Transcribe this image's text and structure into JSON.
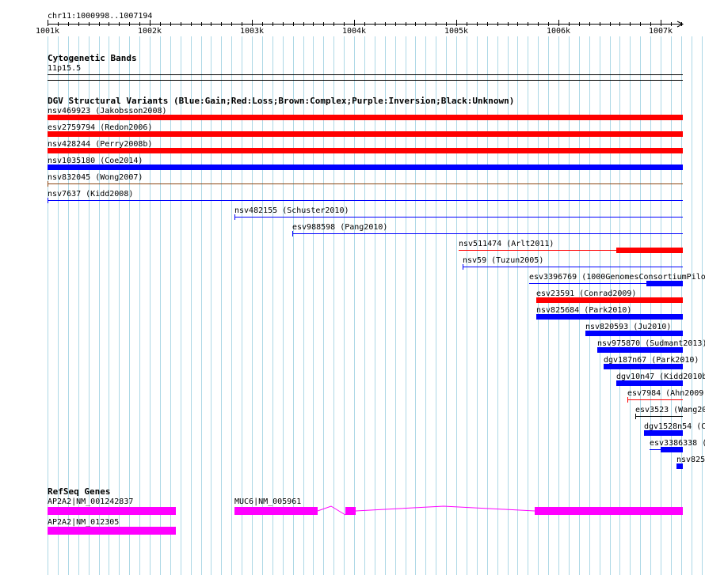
{
  "colors": {
    "gain": "#0000ff",
    "loss": "#ff0000",
    "refseq": "#ff00ff",
    "grid": "#add8e6"
  },
  "ruler": {
    "position": "chr11:1000998..1007194",
    "ticks": [
      "1001k",
      "1002k",
      "1003k",
      "1004k",
      "1005k",
      "1006k",
      "1007k"
    ]
  },
  "cytoband": {
    "title": "Cytogenetic Bands",
    "band": "11p15.5"
  },
  "dgv": {
    "title": "DGV Structural Variants (Blue:Gain;Red:Loss;Brown:Complex;Purple:Inversion;Black:Unknown)",
    "variants": [
      {
        "label": "nsv469923 (Jakobsson2008)",
        "type": "loss"
      },
      {
        "label": "esv2759794 (Redon2006)",
        "type": "loss"
      },
      {
        "label": "nsv428244 (Perry2008b)",
        "type": "loss"
      },
      {
        "label": "nsv1035180 (Coe2014)",
        "type": "gain"
      },
      {
        "label": "nsv832045 (Wong2007)",
        "type": "complex"
      },
      {
        "label": "nsv7637 (Kidd2008)",
        "type": "gain"
      },
      {
        "label": "nsv482155 (Schuster2010)",
        "type": "gain"
      },
      {
        "label": "esv988598 (Pang2010)",
        "type": "gain"
      },
      {
        "label": "nsv511474 (Arlt2011)",
        "type": "loss"
      },
      {
        "label": "nsv59 (Tuzun2005)",
        "type": "gain"
      },
      {
        "label": "esv3396769 (1000GenomesConsortiumPilo",
        "type": "gain"
      },
      {
        "label": "esv23591 (Conrad2009)",
        "type": "loss"
      },
      {
        "label": "nsv825684 (Park2010)",
        "type": "gain"
      },
      {
        "label": "nsv820593 (Ju2010)",
        "type": "gain"
      },
      {
        "label": "nsv975870 (Sudmant2013)",
        "type": "gain"
      },
      {
        "label": "dgv187n67 (Park2010)",
        "type": "gain"
      },
      {
        "label": "dgv10n47 (Kidd2010b",
        "type": "gain"
      },
      {
        "label": "esv7984 (Ahn2009)",
        "type": "loss"
      },
      {
        "label": "esv3523 (Wang20",
        "type": "unknown"
      },
      {
        "label": "dgv1528n54 (C",
        "type": "gain"
      },
      {
        "label": "esv3386338 (",
        "type": "gain"
      },
      {
        "label": "nsv825",
        "type": "gain"
      }
    ]
  },
  "refseq": {
    "title": "RefSeq Genes",
    "genes": [
      {
        "label": "AP2A2|NM_001242837"
      },
      {
        "label": "MUC6|NM_005961"
      },
      {
        "label": "AP2A2|NM_012305"
      }
    ]
  }
}
